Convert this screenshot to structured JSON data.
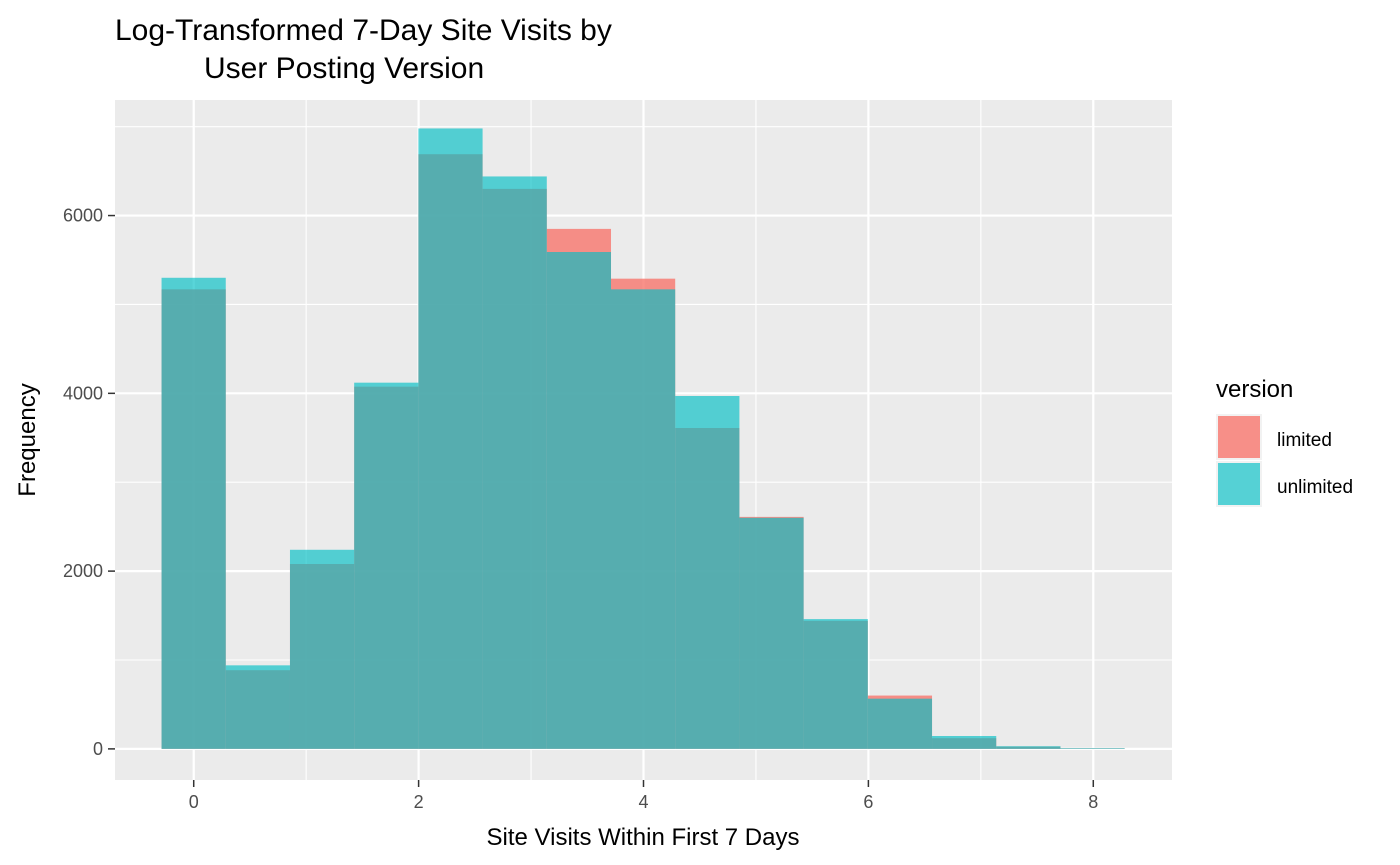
{
  "chart_data": {
    "type": "bar",
    "subtype": "overlapping-histogram",
    "title_lines": [
      "Log-Transformed 7-Day Site Visits by",
      "User Posting Version"
    ],
    "xlabel": "Site Visits Within First 7 Days",
    "ylabel": "Frequency",
    "xlim": [
      -0.7,
      8.7
    ],
    "ylim": [
      -350,
      7300
    ],
    "x_ticks": [
      0,
      2,
      4,
      6,
      8
    ],
    "y_ticks": [
      0,
      2000,
      4000,
      6000
    ],
    "bin_width": 0.571,
    "bin_start": -0.286,
    "grid": true,
    "legend": {
      "title": "version",
      "position": "right"
    },
    "series": [
      {
        "name": "limited",
        "color": "#F8766D",
        "values": [
          5170,
          885,
          2080,
          4075,
          6690,
          6300,
          5850,
          5290,
          3610,
          2610,
          1440,
          600,
          120,
          25,
          5
        ]
      },
      {
        "name": "unlimited",
        "color": "#00BFC4",
        "values": [
          5300,
          940,
          2240,
          4120,
          6980,
          6440,
          5590,
          5170,
          3970,
          2600,
          1460,
          565,
          145,
          30,
          8
        ]
      }
    ]
  }
}
